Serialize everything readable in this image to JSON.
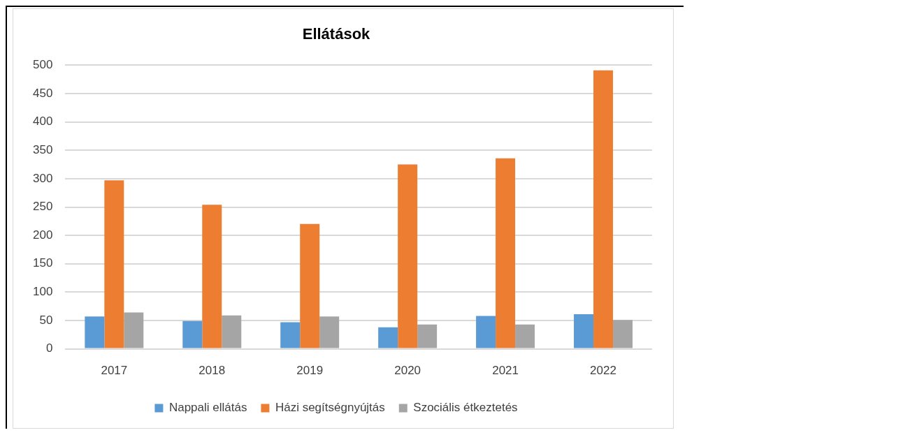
{
  "chart_data": {
    "type": "bar",
    "title": "Ellátások",
    "categories": [
      "2017",
      "2018",
      "2019",
      "2020",
      "2021",
      "2022"
    ],
    "series": [
      {
        "name": "Nappali ellátás",
        "color": "#5b9bd5",
        "values": [
          57,
          49,
          47,
          38,
          58,
          61
        ]
      },
      {
        "name": "Házi segítségnyújtás",
        "color": "#ed7d31",
        "values": [
          297,
          254,
          220,
          325,
          336,
          491
        ]
      },
      {
        "name": "Szociális étkeztetés",
        "color": "#a5a5a5",
        "values": [
          64,
          59,
          57,
          43,
          43,
          51
        ]
      }
    ],
    "ylim": [
      0,
      500
    ],
    "yticks": [
      0,
      50,
      100,
      150,
      200,
      250,
      300,
      350,
      400,
      450,
      500
    ],
    "grid": "y",
    "legend": "bottom"
  }
}
